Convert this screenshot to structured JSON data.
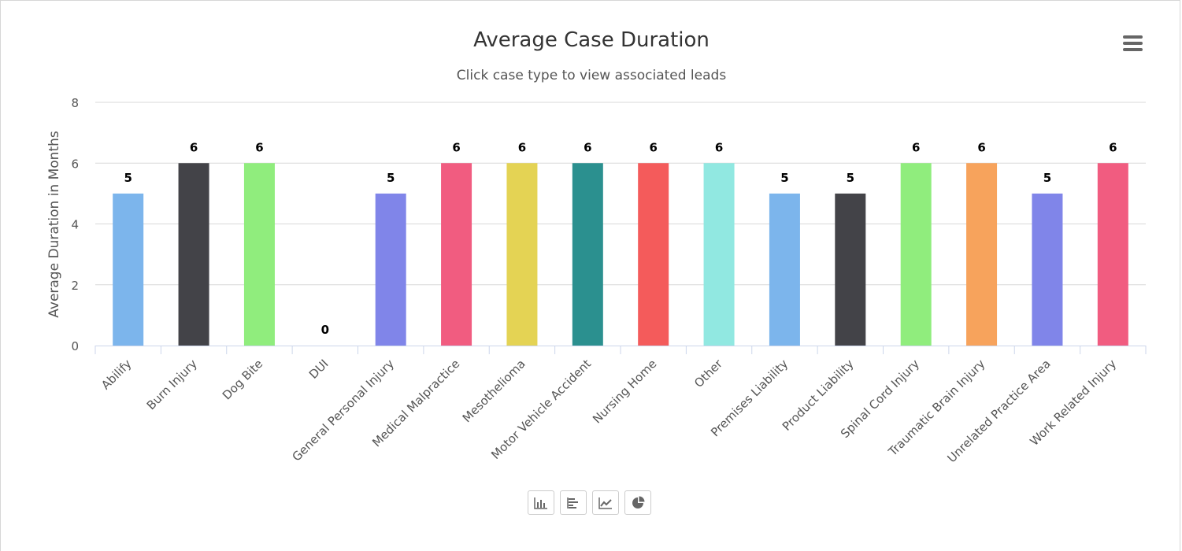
{
  "chart_data": {
    "type": "bar",
    "title": "Average Case Duration",
    "subtitle": "Click case type to view associated leads",
    "xlabel": "",
    "ylabel": "Average Duration in Months",
    "ylim": [
      0,
      8
    ],
    "yticks": [
      "0",
      "2",
      "4",
      "6",
      "8"
    ],
    "grid": true,
    "categories": [
      "Abilify",
      "Burn Injury",
      "Dog Bite",
      "DUI",
      "General Personal Injury",
      "Medical Malpractice",
      "Mesothelioma",
      "Motor Vehicle Accident",
      "Nursing Home",
      "Other",
      "Premises Liability",
      "Product Liability",
      "Spinal Cord Injury",
      "Traumatic Brain Injury",
      "Unrelated Practice Area",
      "Work Related Injury"
    ],
    "values": [
      5,
      6,
      6,
      0,
      5,
      6,
      6,
      6,
      6,
      6,
      5,
      5,
      6,
      6,
      5,
      6
    ],
    "colors": [
      "#7cb5ec",
      "#434348",
      "#90ed7d",
      "#f7a35c",
      "#8085e9",
      "#f15c80",
      "#e4d354",
      "#2b908f",
      "#f45b5b",
      "#91e8e1",
      "#7cb5ec",
      "#434348",
      "#90ed7d",
      "#f7a35c",
      "#8085e9",
      "#f15c80"
    ]
  },
  "controls": {
    "menu_icon": "hamburger-menu-icon",
    "chart_types": [
      "column-chart-icon",
      "bar-chart-icon",
      "line-chart-icon",
      "pie-chart-icon"
    ]
  }
}
